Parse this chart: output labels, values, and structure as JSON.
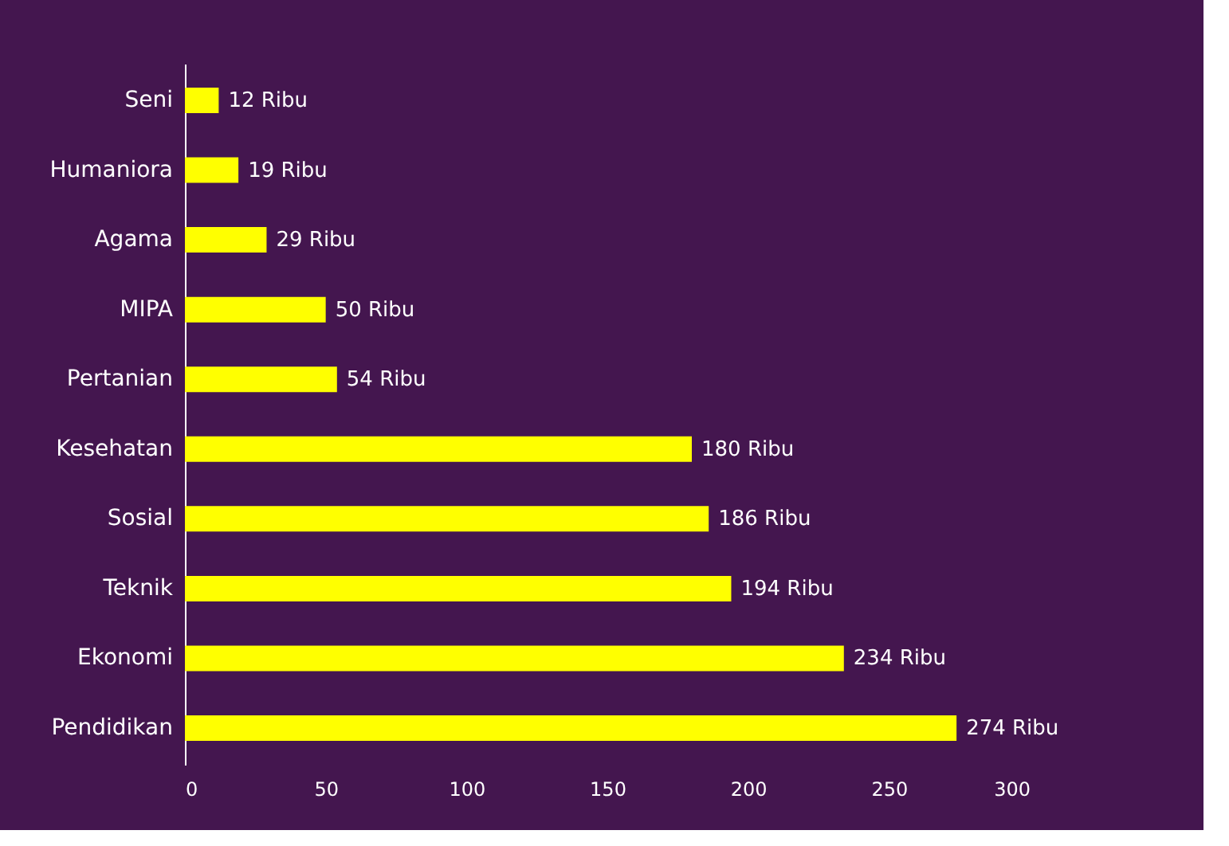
{
  "chart_data": {
    "type": "bar",
    "orientation": "horizontal",
    "categories": [
      "Seni",
      "Humaniora",
      "Agama",
      "MIPA",
      "Pertanian",
      "Kesehatan",
      "Sosial",
      "Teknik",
      "Ekonomi",
      "Pendidikan"
    ],
    "values": [
      12,
      19,
      29,
      50,
      54,
      180,
      186,
      194,
      234,
      274
    ],
    "value_labels": [
      "12 Ribu",
      "19 Ribu",
      "29 Ribu",
      "50 Ribu",
      "54 Ribu",
      "180 Ribu",
      "186 Ribu",
      "194 Ribu",
      "234 Ribu",
      "274 Ribu"
    ],
    "color": "#ffff00",
    "xlim": [
      0,
      300
    ],
    "xticks": [
      0,
      50,
      100,
      150,
      200,
      250,
      300
    ],
    "grid": false
  }
}
